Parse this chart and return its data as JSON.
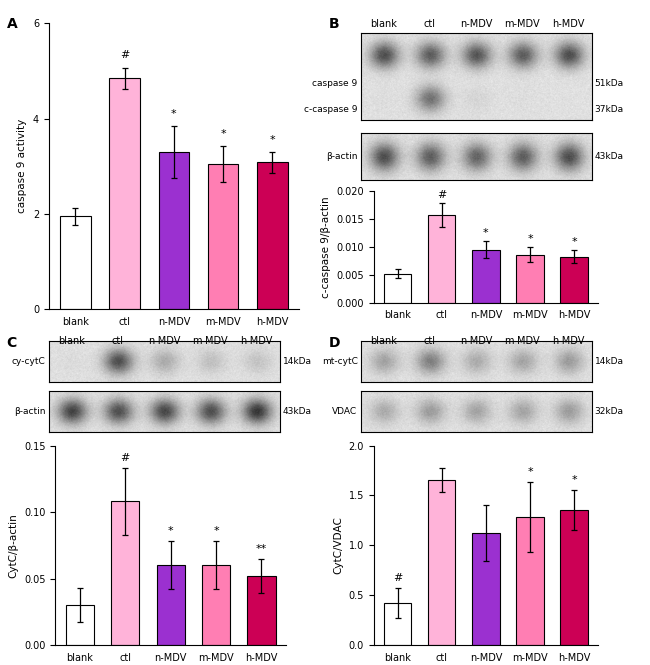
{
  "panel_A": {
    "categories": [
      "blank",
      "ctl",
      "n-MDV",
      "m-MDV",
      "h-MDV"
    ],
    "values": [
      1.95,
      4.85,
      3.3,
      3.05,
      3.08
    ],
    "errors": [
      0.18,
      0.22,
      0.55,
      0.38,
      0.22
    ],
    "colors": [
      "#ffffff",
      "#ffb3d9",
      "#9b30d0",
      "#ff7eb3",
      "#cc0055"
    ],
    "ylabel": "caspase 9 activity",
    "ylim": [
      0,
      6
    ],
    "yticks": [
      0,
      2,
      4,
      6
    ],
    "annotations": [
      "",
      "#",
      "*",
      "*",
      "*"
    ]
  },
  "panel_B_bar": {
    "categories": [
      "blank",
      "ctl",
      "n-MDV",
      "m-MDV",
      "h-MDV"
    ],
    "values": [
      0.0052,
      0.0157,
      0.0095,
      0.0086,
      0.0082
    ],
    "errors": [
      0.0008,
      0.0022,
      0.0015,
      0.0014,
      0.0012
    ],
    "colors": [
      "#ffffff",
      "#ffb3d9",
      "#9b30d0",
      "#ff7eb3",
      "#cc0055"
    ],
    "ylabel": "c-caspase 9/β-actin",
    "ylim": [
      0,
      0.02
    ],
    "yticks": [
      0.0,
      0.005,
      0.01,
      0.015,
      0.02
    ],
    "annotations": [
      "",
      "#",
      "*",
      "*",
      "*"
    ]
  },
  "panel_C_bar": {
    "categories": [
      "blank",
      "ctl",
      "n-MDV",
      "m-MDV",
      "h-MDV"
    ],
    "values": [
      0.03,
      0.108,
      0.06,
      0.06,
      0.052
    ],
    "errors": [
      0.013,
      0.025,
      0.018,
      0.018,
      0.013
    ],
    "colors": [
      "#ffffff",
      "#ffb3d9",
      "#9b30d0",
      "#ff7eb3",
      "#cc0055"
    ],
    "ylabel": "CytC/β-actin",
    "ylim": [
      0,
      0.15
    ],
    "yticks": [
      0.0,
      0.05,
      0.1,
      0.15
    ],
    "annotations": [
      "",
      "#",
      "*",
      "*",
      "**"
    ]
  },
  "panel_D_bar": {
    "categories": [
      "blank",
      "ctl",
      "n-MDV",
      "m-MDV",
      "h-MDV"
    ],
    "values": [
      0.42,
      1.65,
      1.12,
      1.28,
      1.35
    ],
    "errors": [
      0.15,
      0.12,
      0.28,
      0.35,
      0.2
    ],
    "colors": [
      "#ffffff",
      "#ffb3d9",
      "#9b30d0",
      "#ff7eb3",
      "#cc0055"
    ],
    "ylabel": "CytC/VDAC",
    "ylim": [
      0,
      2.0
    ],
    "yticks": [
      0.0,
      0.5,
      1.0,
      1.5,
      2.0
    ],
    "annotations": [
      "#",
      "",
      "",
      "*",
      "*"
    ]
  },
  "wb_B_top": {
    "col_labels": [
      "blank",
      "ctl",
      "n-MDV",
      "m-MDV",
      "h-MDV"
    ],
    "row_labels": [
      "caspase 9",
      "c-caspase 9"
    ],
    "kda_labels": [
      "51kDa",
      "37kDa"
    ],
    "band_intensities": [
      [
        0.82,
        0.78,
        0.8,
        0.78,
        0.82
      ],
      [
        0.18,
        0.72,
        0.28,
        0.18,
        0.12
      ]
    ]
  },
  "wb_B_bot": {
    "row_labels": [
      "β-actin"
    ],
    "kda_labels": [
      "43kDa"
    ],
    "band_intensities": [
      [
        0.82,
        0.78,
        0.76,
        0.78,
        0.82
      ]
    ]
  },
  "wb_C_top": {
    "col_labels": [
      "blank",
      "ctl",
      "n-MDV",
      "m-MDV",
      "h-MDV"
    ],
    "row_labels": [
      "cy-cytC"
    ],
    "kda_labels": [
      "14kDa"
    ],
    "band_intensities": [
      [
        0.22,
        0.82,
        0.52,
        0.42,
        0.4
      ]
    ]
  },
  "wb_C_bot": {
    "row_labels": [
      "β-actin"
    ],
    "kda_labels": [
      "43kDa"
    ],
    "band_intensities": [
      [
        0.85,
        0.82,
        0.84,
        0.82,
        0.88
      ]
    ]
  },
  "wb_D_top": {
    "col_labels": [
      "blank",
      "ctl",
      "n-MDV",
      "m-MDV",
      "h-MDV"
    ],
    "row_labels": [
      "mt-cytC"
    ],
    "kda_labels": [
      "14kDa"
    ],
    "band_intensities": [
      [
        0.55,
        0.68,
        0.52,
        0.55,
        0.58
      ]
    ]
  },
  "wb_D_bot": {
    "row_labels": [
      "VDAC"
    ],
    "kda_labels": [
      "32kDa"
    ],
    "band_intensities": [
      [
        0.52,
        0.58,
        0.55,
        0.55,
        0.58
      ]
    ]
  },
  "bar_edge_color": "#000000",
  "bar_linewidth": 0.8,
  "error_color": "#000000",
  "error_capsize": 2.5,
  "error_linewidth": 0.9,
  "tick_fontsize": 7,
  "label_fontsize": 7.5,
  "annot_fontsize": 8,
  "panel_label_fontsize": 10,
  "wb_label_fontsize": 6.5,
  "wb_col_label_fontsize": 7
}
